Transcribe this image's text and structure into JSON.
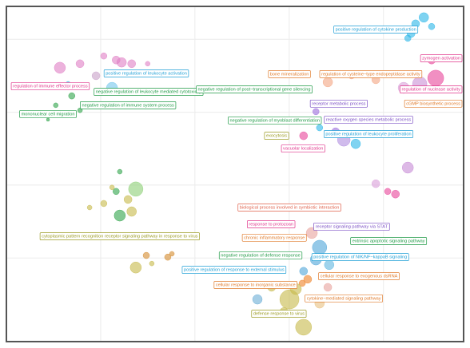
{
  "chart_data": {
    "type": "scatter",
    "xlim": [
      0,
      100
    ],
    "ylim": [
      0,
      100
    ],
    "grid": true,
    "x": [
      91.3,
      89.5,
      88.5,
      87.8,
      93.0,
      93.9,
      90.4,
      86.9,
      80.8,
      70.3,
      75.5,
      93.0,
      73.8,
      76.4,
      72.0,
      68.5,
      65.0,
      67.7,
      87.8,
      80.8,
      85.1,
      83.4,
      11.7,
      16.1,
      21.3,
      24.0,
      25.2,
      27.4,
      19.6,
      30.9,
      23.1,
      14.3,
      10.8,
      13.5,
      9.1,
      16.1,
      24.0,
      24.8,
      28.3,
      27.4,
      23.1,
      21.3,
      18.2,
      24.8,
      26.6,
      28.3,
      30.6,
      35.3,
      31.8,
      36.2,
      66.8,
      68.5,
      67.7,
      70.6,
      65.0,
      65.9,
      64.7,
      61.9,
      65.0,
      63.3,
      58.0,
      54.9,
      68.5,
      60.7,
      70.3
    ],
    "y": [
      96.7,
      94.8,
      91.9,
      90.5,
      94.0,
      78.6,
      76.9,
      75.7,
      78.1,
      77.4,
      79.3,
      84.0,
      60.2,
      59.0,
      62.6,
      63.8,
      61.4,
      68.6,
      51.9,
      47.1,
      44.0,
      44.8,
      81.7,
      82.9,
      85.2,
      84.0,
      83.3,
      82.9,
      79.3,
      82.9,
      75.7,
      73.3,
      70.5,
      76.9,
      66.2,
      69.0,
      44.8,
      37.6,
      45.5,
      38.8,
      46.0,
      41.2,
      40.0,
      50.7,
      42.4,
      22.1,
      25.7,
      25.2,
      23.3,
      26.2,
      32.4,
      28.1,
      24.5,
      22.9,
      21.0,
      18.6,
      17.4,
      12.6,
      4.3,
      15.7,
      16.2,
      12.6,
      11.4,
      9.0,
      16.2
    ],
    "sizes": [
      6,
      5,
      5,
      4,
      4,
      10,
      9,
      7,
      5,
      6,
      4,
      5,
      8,
      6,
      5,
      4,
      5,
      4,
      7,
      5,
      5,
      4,
      7,
      5,
      4,
      5,
      6,
      5,
      5,
      3,
      7,
      4,
      3,
      3,
      2,
      3,
      4,
      7,
      9,
      6,
      3,
      4,
      3,
      3,
      5,
      7,
      4,
      4,
      3,
      3,
      7,
      9,
      7,
      6,
      5,
      5,
      4,
      12,
      10,
      7,
      5,
      6,
      6,
      5,
      5
    ],
    "colors": [
      "#29b6e8",
      "#29b6e8",
      "#29b6e8",
      "#29b6e8",
      "#29b6e8",
      "#e8459a",
      "#c98fd6",
      "#d8a0d8",
      "#f4a582",
      "#f4a582",
      "#f4a582",
      "#e8459a",
      "#b08de0",
      "#29b6e8",
      "#9b6cdc",
      "#29b6e8",
      "#e8459a",
      "#9b6cdc",
      "#c78ad6",
      "#d89cd8",
      "#e8459a",
      "#e8459a",
      "#e07ec4",
      "#e07ec4",
      "#e07ec4",
      "#e07ec4",
      "#e07ec4",
      "#e07ec4",
      "#c8a0c8",
      "#e07ec4",
      "#73c6ec",
      "#2ea34a",
      "#2ea34a",
      "#29b6e8",
      "#2ea34a",
      "#2ea34a",
      "#2ea34a",
      "#2ea34a",
      "#8ccf75",
      "#c7b94a",
      "#c7b94a",
      "#c7b94a",
      "#c7b94a",
      "#2ea34a",
      "#c7b94a",
      "#c7b94a",
      "#d38a2d",
      "#d38a2d",
      "#c7b94a",
      "#d38a2d",
      "#e8a29c",
      "#4fa5d8",
      "#4fa5d8",
      "#5fb6e0",
      "#4fa5d8",
      "#ef8024",
      "#ef8024",
      "#c7b94a",
      "#c7b94a",
      "#c7b94a",
      "#c7b94a",
      "#6baed6",
      "#e8c080",
      "#c7b94a",
      "#e8a29c"
    ],
    "annotations": [
      {
        "text": "positive regulation of cytokine production",
        "x": 80.8,
        "y": 93.1,
        "color": "#1f9fd6"
      },
      {
        "text": "zymogen activation",
        "x": 95.3,
        "y": 84.5,
        "color": "#e0338a"
      },
      {
        "text": "bone mineralization",
        "x": 61.9,
        "y": 79.8,
        "color": "#e07a2a"
      },
      {
        "text": "regulation of cysteine−type endopeptidase activity",
        "x": 79.7,
        "y": 79.8,
        "color": "#e07a2a"
      },
      {
        "text": "regulation of nuclease activity",
        "x": 95.6,
        "y": 75.2,
        "color": "#e0338a"
      },
      {
        "text": "regulation of immune effector process",
        "x": 9.6,
        "y": 76.2,
        "color": "#e0338a"
      },
      {
        "text": "positive regulation of leukocyte activation",
        "x": 30.6,
        "y": 80.0,
        "color": "#1f9fd6"
      },
      {
        "text": "negative regulation of leukocyte mediated cytotoxicity",
        "x": 31.1,
        "y": 74.5,
        "color": "#1e9a45"
      },
      {
        "text": "negative regulation of post−transcriptional gene silencing",
        "x": 54.2,
        "y": 75.2,
        "color": "#1e9a45"
      },
      {
        "text": "negative regulation of immune system process",
        "x": 26.6,
        "y": 70.5,
        "color": "#1e9a45"
      },
      {
        "text": "mononuclear cell migration",
        "x": 9.1,
        "y": 67.9,
        "color": "#1e9a45"
      },
      {
        "text": "receptor metabolic process",
        "x": 72.7,
        "y": 71.0,
        "color": "#7b4fc4"
      },
      {
        "text": "cGMP biosynthetic process",
        "x": 95.1,
        "y": 71.0,
        "color": "#e07a2a"
      },
      {
        "text": "negative regulation of myoblast differentiation",
        "x": 58.7,
        "y": 66.0,
        "color": "#1e9a45"
      },
      {
        "text": "reactive oxygen species metabolic process",
        "x": 79.2,
        "y": 66.2,
        "color": "#7b4fc4"
      },
      {
        "text": "positive regulation of leukocyte proliferation",
        "x": 79.2,
        "y": 61.9,
        "color": "#1f9fd6"
      },
      {
        "text": "exocytosis",
        "x": 59.1,
        "y": 61.4,
        "color": "#9a9a20"
      },
      {
        "text": "vacuolar localization",
        "x": 64.9,
        "y": 57.6,
        "color": "#e0338a"
      },
      {
        "text": "biological process involved in symbiotic interaction",
        "x": 61.9,
        "y": 40.0,
        "color": "#e0604a"
      },
      {
        "text": "response to protozoan",
        "x": 57.9,
        "y": 35.0,
        "color": "#e0338a"
      },
      {
        "text": "receptor signaling pathway via STAT",
        "x": 75.5,
        "y": 34.3,
        "color": "#7b4fc4"
      },
      {
        "text": "cytoplasmic pattern recognition receptor signaling pathway in response to virus",
        "x": 24.8,
        "y": 31.4,
        "color": "#9a9a20"
      },
      {
        "text": "chronic inflammatory response",
        "x": 58.6,
        "y": 31.0,
        "color": "#e07a2a"
      },
      {
        "text": "extrinsic apoptotic signaling pathway",
        "x": 83.6,
        "y": 30.0,
        "color": "#1e9a45"
      },
      {
        "text": "negative regulation of defense response",
        "x": 55.6,
        "y": 25.7,
        "color": "#1e9a45"
      },
      {
        "text": "positive regulation of NIK/NF−kappaB signaling",
        "x": 77.4,
        "y": 25.2,
        "color": "#1f9fd6"
      },
      {
        "text": "positive regulation of response to external stimulus",
        "x": 49.8,
        "y": 21.4,
        "color": "#1f9fd6"
      },
      {
        "text": "cellular response to exogenous dsRNA",
        "x": 77.1,
        "y": 19.5,
        "color": "#e07a2a"
      },
      {
        "text": "cellular response to inorganic substance",
        "x": 54.5,
        "y": 16.9,
        "color": "#e07a2a"
      },
      {
        "text": "cytokine−mediated signaling pathway",
        "x": 73.8,
        "y": 12.9,
        "color": "#e07a2a"
      },
      {
        "text": "defense response to virus",
        "x": 59.6,
        "y": 8.3,
        "color": "#9a9a20"
      }
    ]
  }
}
